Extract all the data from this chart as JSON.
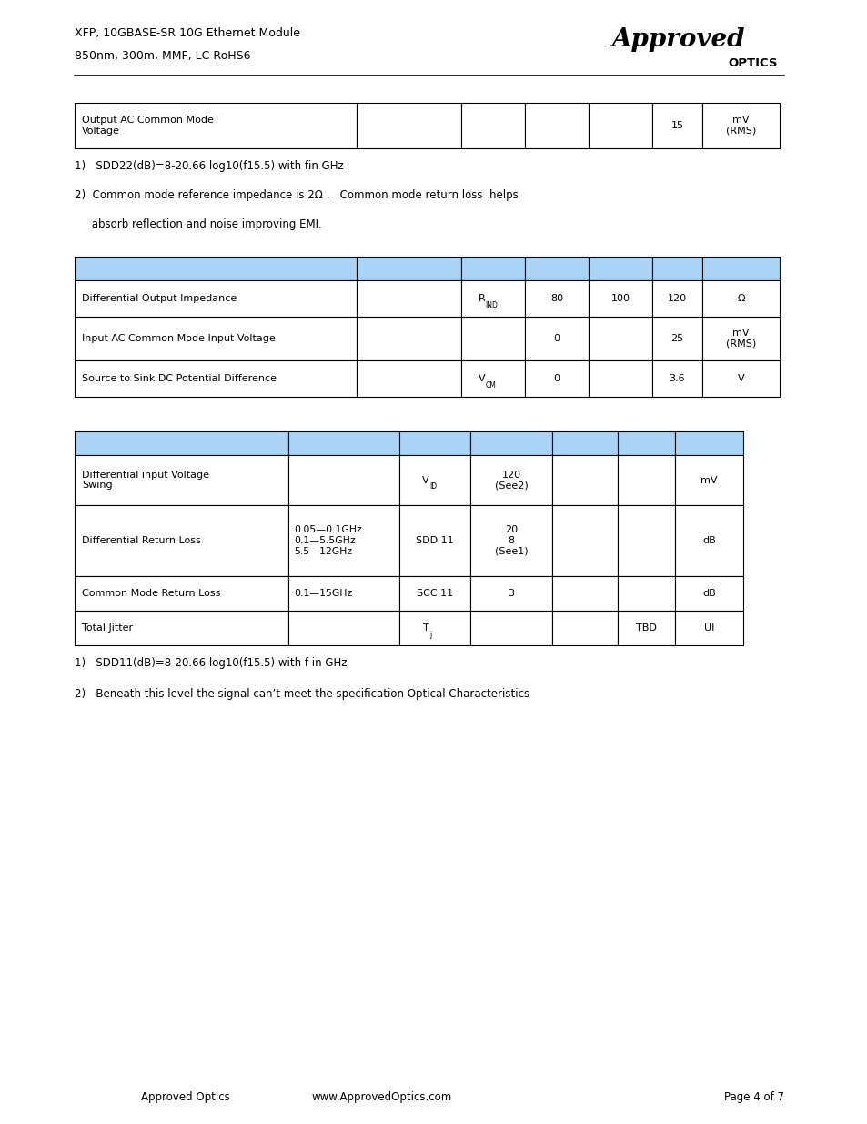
{
  "title_line1": "XFP, 10GBASE-SR 10G Ethernet Module",
  "title_line2": "850nm, 300m, MMF, LC RoHS6",
  "bg_color": "#ffffff",
  "header_color": "#aad4f5",
  "border_color": "#000000",
  "table1_last_row": {
    "col1": "Output AC Common Mode\nVoltage",
    "col6": "15",
    "col7": "mV\n(RMS)"
  },
  "notes1_line1": "1)   SDD22(dB)=8-20.66 log10(f15.5) with fin GHz",
  "notes1_line2a": "2)  Common mode reference impedance is 2Ω .   Common mode return loss  helps",
  "notes1_line2b": "     absorb reflection and noise improving EMI.",
  "table2_rows": [
    [
      "Differential Output Impedance",
      "",
      "RIND",
      "80",
      "100",
      "120",
      "Ω"
    ],
    [
      "Input AC Common Mode Input Voltage",
      "",
      "",
      "0",
      "",
      "25",
      "mV\n(RMS)"
    ],
    [
      "Source to Sink DC Potential Difference",
      "",
      "VCM",
      "0",
      "",
      "3.6",
      "V"
    ]
  ],
  "table3_rows": [
    [
      "Differential input Voltage\nSwing",
      "",
      "VID",
      "120\n(See2)",
      "",
      "",
      "mV"
    ],
    [
      "Differential Return Loss",
      "0.05—0.1GHz\n0.1—5.5GHz\n5.5—12GHz",
      "SDD 11",
      "20\n8\n(See1)",
      "",
      "",
      "dB"
    ],
    [
      "Common Mode Return Loss",
      "0.1—15GHz",
      "SCC 11",
      "3",
      "",
      "",
      "dB"
    ],
    [
      "Total Jitter",
      "",
      "Tj",
      "",
      "",
      "TBD",
      "UI"
    ]
  ],
  "notes2_line1": "1)   SDD11(dB)=8-20.66 log10(f15.5) with f in GHz",
  "notes2_line2": "2)   Beneath this level the signal can’t meet the specification Optical Characteristics",
  "footer_left": "Approved Optics",
  "footer_center": "www.ApprovedOptics.com",
  "footer_right": "Page 4 of 7",
  "col_widths_t1": [
    3.1,
    1.15,
    0.7,
    0.7,
    0.7,
    0.55,
    0.85
  ],
  "col_widths_t2": [
    3.1,
    1.15,
    0.7,
    0.7,
    0.7,
    0.55,
    0.85
  ],
  "col_widths_t3": [
    2.35,
    1.22,
    0.78,
    0.9,
    0.72,
    0.63,
    0.75
  ]
}
